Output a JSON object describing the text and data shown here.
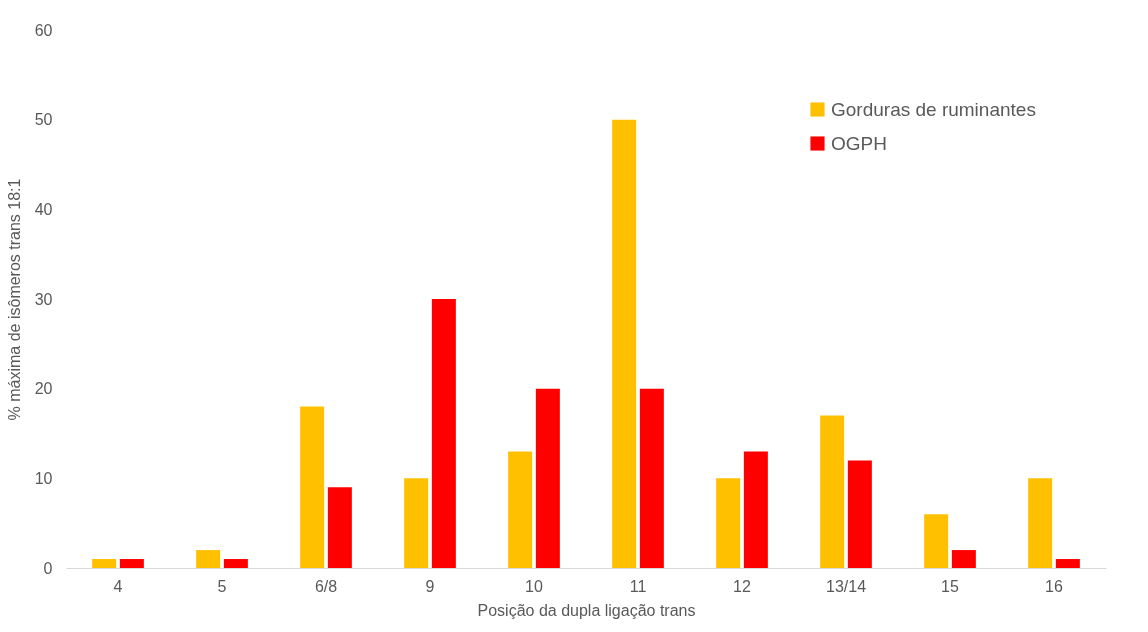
{
  "chart_data": {
    "type": "bar",
    "xlabel": "Posição da dupla ligação trans",
    "ylabel": "% máxima de isômeros trans 18:1",
    "categories": [
      "4",
      "5",
      "6/8",
      "9",
      "10",
      "11",
      "12",
      "13/14",
      "15",
      "16"
    ],
    "series": [
      {
        "name": "Gorduras de ruminantes",
        "color": "#ffc000",
        "values": [
          1,
          2,
          18,
          10,
          13,
          50,
          10,
          17,
          6,
          10
        ]
      },
      {
        "name": "OGPH",
        "color": "#ff0000",
        "values": [
          1,
          1,
          9,
          30,
          20,
          20,
          13,
          12,
          2,
          1
        ]
      }
    ],
    "ylim": [
      0,
      60
    ],
    "yticks": [
      0,
      10,
      20,
      30,
      40,
      50,
      60
    ],
    "legend": "top right"
  }
}
